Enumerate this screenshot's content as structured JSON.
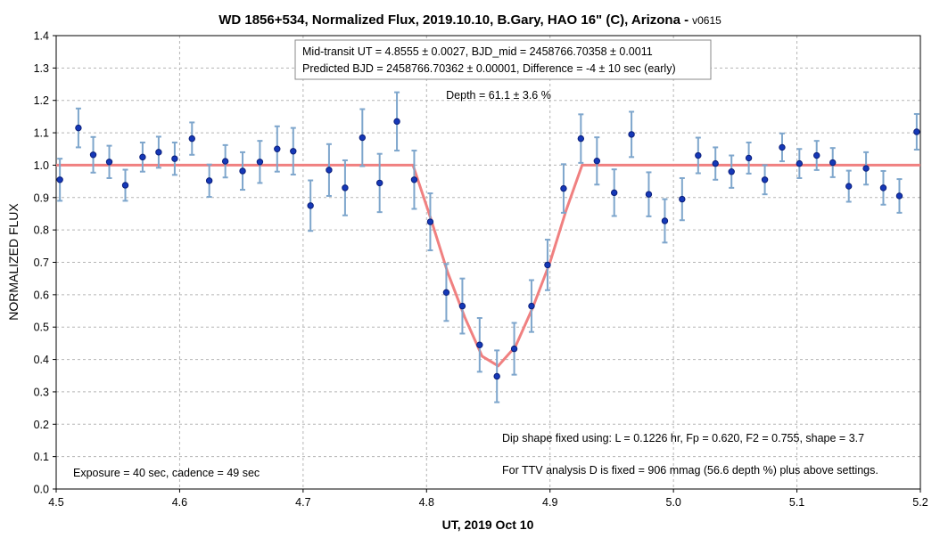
{
  "chart_data": {
    "type": "scatter",
    "title": "WD 1856+534, Normalized Flux, 2019.10.10, B.Gary, HAO 16\" (C), Arizona -",
    "title_suffix": "v0615",
    "xlabel": "UT, 2019 Oct 10",
    "ylabel": "NORMALIZED FLUX",
    "xlim": [
      4.5,
      5.2
    ],
    "ylim": [
      0.0,
      1.4
    ],
    "x_ticks": [
      "4.5",
      "4.6",
      "4.7",
      "4.8",
      "4.9",
      "5.0",
      "5.1",
      "5.2"
    ],
    "y_ticks": [
      "0.0",
      "0.1",
      "0.2",
      "0.3",
      "0.4",
      "0.5",
      "0.6",
      "0.7",
      "0.8",
      "0.9",
      "1.0",
      "1.1",
      "1.2",
      "1.3",
      "1.4"
    ],
    "grid": true,
    "colors": {
      "points": "#1538b8",
      "point_edge": "#0b1f7a",
      "errorbars": "#7ea6cc",
      "model": "#f08080"
    },
    "series": [
      {
        "type": "scatter_errorbars",
        "points": [
          {
            "x": 4.503,
            "y": 0.955,
            "err": 0.065
          },
          {
            "x": 4.518,
            "y": 1.115,
            "err": 0.06
          },
          {
            "x": 4.53,
            "y": 1.032,
            "err": 0.055
          },
          {
            "x": 4.543,
            "y": 1.01,
            "err": 0.05
          },
          {
            "x": 4.556,
            "y": 0.938,
            "err": 0.048
          },
          {
            "x": 4.57,
            "y": 1.025,
            "err": 0.045
          },
          {
            "x": 4.583,
            "y": 1.04,
            "err": 0.048
          },
          {
            "x": 4.596,
            "y": 1.02,
            "err": 0.05
          },
          {
            "x": 4.61,
            "y": 1.082,
            "err": 0.05
          },
          {
            "x": 4.624,
            "y": 0.952,
            "err": 0.05
          },
          {
            "x": 4.637,
            "y": 1.012,
            "err": 0.05
          },
          {
            "x": 4.651,
            "y": 0.982,
            "err": 0.058
          },
          {
            "x": 4.665,
            "y": 1.01,
            "err": 0.065
          },
          {
            "x": 4.679,
            "y": 1.05,
            "err": 0.07
          },
          {
            "x": 4.692,
            "y": 1.043,
            "err": 0.072
          },
          {
            "x": 4.706,
            "y": 0.875,
            "err": 0.078
          },
          {
            "x": 4.721,
            "y": 0.985,
            "err": 0.08
          },
          {
            "x": 4.734,
            "y": 0.93,
            "err": 0.085
          },
          {
            "x": 4.748,
            "y": 1.085,
            "err": 0.088
          },
          {
            "x": 4.762,
            "y": 0.945,
            "err": 0.09
          },
          {
            "x": 4.776,
            "y": 1.135,
            "err": 0.09
          },
          {
            "x": 4.79,
            "y": 0.955,
            "err": 0.09
          },
          {
            "x": 4.803,
            "y": 0.825,
            "err": 0.088
          },
          {
            "x": 4.816,
            "y": 0.607,
            "err": 0.088
          },
          {
            "x": 4.829,
            "y": 0.565,
            "err": 0.085
          },
          {
            "x": 4.843,
            "y": 0.445,
            "err": 0.083
          },
          {
            "x": 4.857,
            "y": 0.348,
            "err": 0.08
          },
          {
            "x": 4.871,
            "y": 0.433,
            "err": 0.08
          },
          {
            "x": 4.885,
            "y": 0.565,
            "err": 0.08
          },
          {
            "x": 4.898,
            "y": 0.692,
            "err": 0.078
          },
          {
            "x": 4.911,
            "y": 0.928,
            "err": 0.075
          },
          {
            "x": 4.925,
            "y": 1.082,
            "err": 0.075
          },
          {
            "x": 4.938,
            "y": 1.013,
            "err": 0.073
          },
          {
            "x": 4.952,
            "y": 0.915,
            "err": 0.072
          },
          {
            "x": 4.966,
            "y": 1.095,
            "err": 0.07
          },
          {
            "x": 4.98,
            "y": 0.91,
            "err": 0.068
          },
          {
            "x": 4.993,
            "y": 0.828,
            "err": 0.067
          },
          {
            "x": 5.007,
            "y": 0.895,
            "err": 0.065
          },
          {
            "x": 5.02,
            "y": 1.03,
            "err": 0.055
          },
          {
            "x": 5.034,
            "y": 1.005,
            "err": 0.05
          },
          {
            "x": 5.047,
            "y": 0.98,
            "err": 0.05
          },
          {
            "x": 5.061,
            "y": 1.022,
            "err": 0.048
          },
          {
            "x": 5.074,
            "y": 0.955,
            "err": 0.045
          },
          {
            "x": 5.088,
            "y": 1.055,
            "err": 0.043
          },
          {
            "x": 5.102,
            "y": 1.005,
            "err": 0.045
          },
          {
            "x": 5.116,
            "y": 1.03,
            "err": 0.045
          },
          {
            "x": 5.129,
            "y": 1.008,
            "err": 0.045
          },
          {
            "x": 5.142,
            "y": 0.935,
            "err": 0.048
          },
          {
            "x": 5.156,
            "y": 0.99,
            "err": 0.05
          },
          {
            "x": 5.17,
            "y": 0.93,
            "err": 0.052
          },
          {
            "x": 5.183,
            "y": 0.905,
            "err": 0.052
          },
          {
            "x": 5.197,
            "y": 1.103,
            "err": 0.055
          }
        ]
      },
      {
        "type": "line",
        "x": [
          4.5,
          4.789,
          4.803,
          4.817,
          4.831,
          4.845,
          4.858,
          4.872,
          4.886,
          4.9,
          4.913,
          4.926,
          5.2
        ],
        "y": [
          1.0,
          1.0,
          0.84,
          0.67,
          0.53,
          0.41,
          0.38,
          0.44,
          0.56,
          0.7,
          0.86,
          1.0,
          1.0
        ]
      }
    ]
  },
  "annotations": {
    "box_line1": "Mid-transit UT = 4.8555 ± 0.0027, BJD_mid = 2458766.70358 ± 0.0011",
    "box_line2": "Predicted BJD = 2458766.70362 ± 0.00001, Difference = -4 ± 10 sec (early)",
    "depth": "Depth = 61.1 ± 3.6 %",
    "dip_shape": "Dip shape fixed using:  L = 0.1226 hr, Fp = 0.620, F2 = 0.755, shape = 3.7",
    "ttv": "For TTV analysis D is fixed = 906 mmag (56.6 depth %) plus above settings.",
    "exposure": "Exposure = 40 sec, cadence = 49 sec"
  }
}
